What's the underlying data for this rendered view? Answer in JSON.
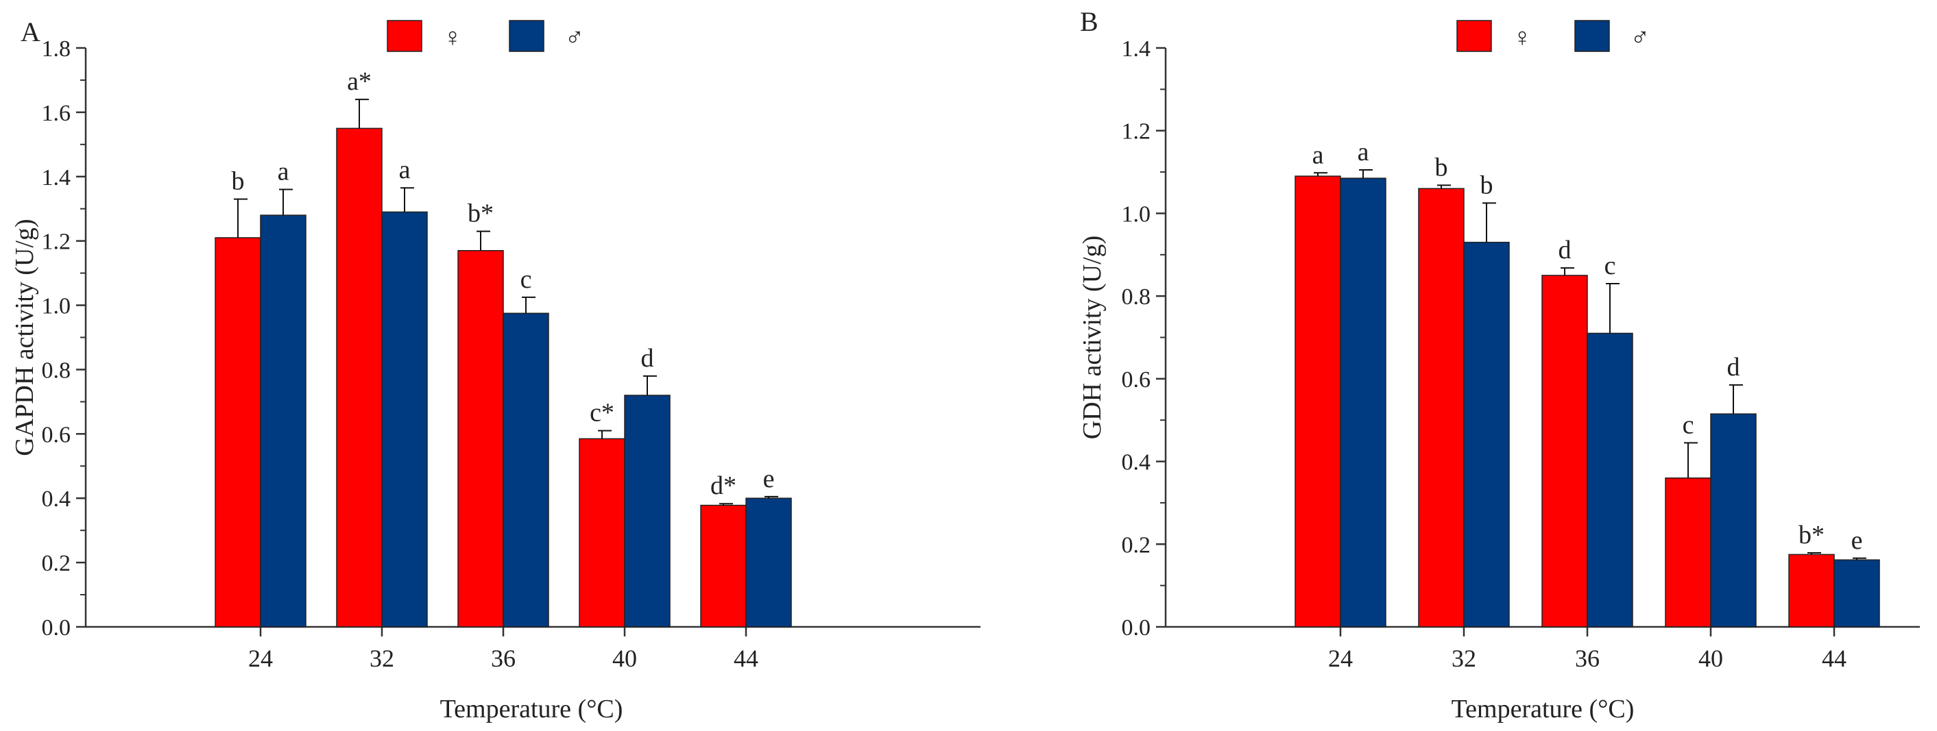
{
  "colors": {
    "female": "#ff0000",
    "male": "#003a80",
    "axis": "#333333"
  },
  "chart_data": [
    {
      "panel_label": "A",
      "type": "bar",
      "title": "",
      "xlabel": "Temperature (°C)",
      "ylabel": "GAPDH activity (U/g)",
      "ylim": [
        0,
        1.8
      ],
      "yticks": [
        0.0,
        0.2,
        0.4,
        0.6,
        0.8,
        1.0,
        1.2,
        1.4,
        1.6,
        1.8
      ],
      "ytick_labels": [
        "0.0",
        "0.2",
        "0.4",
        "0.6",
        "0.8",
        "1.0",
        "1.2",
        "1.4",
        "1.6",
        "1.8"
      ],
      "categories": [
        "24",
        "32",
        "36",
        "40",
        "44"
      ],
      "legend": [
        "♀",
        "♂"
      ],
      "series": [
        {
          "name": "♀",
          "values": [
            1.21,
            1.55,
            1.17,
            0.585,
            0.378
          ],
          "errors": [
            0.12,
            0.09,
            0.06,
            0.025,
            0.005
          ],
          "labels": [
            "b",
            "a*",
            "b*",
            "c*",
            "d*"
          ]
        },
        {
          "name": "♂",
          "values": [
            1.28,
            1.29,
            0.975,
            0.72,
            0.4
          ],
          "errors": [
            0.08,
            0.075,
            0.05,
            0.06,
            0.005
          ],
          "labels": [
            "a",
            "a",
            "c",
            "d",
            "e"
          ]
        }
      ]
    },
    {
      "panel_label": "B",
      "type": "bar",
      "title": "",
      "xlabel": "Temperature (°C)",
      "ylabel": "GDH activity (U/g)",
      "ylim": [
        0,
        1.4
      ],
      "yticks": [
        0.0,
        0.2,
        0.4,
        0.6,
        0.8,
        1.0,
        1.2,
        1.4
      ],
      "ytick_labels": [
        "0.0",
        "0.2",
        "0.4",
        "0.6",
        "0.8",
        "1.0",
        "1.2",
        "1.4"
      ],
      "categories": [
        "24",
        "32",
        "36",
        "40",
        "44"
      ],
      "legend": [
        "♀",
        "♂"
      ],
      "series": [
        {
          "name": "♀",
          "values": [
            1.09,
            1.06,
            0.85,
            0.36,
            0.175
          ],
          "errors": [
            0.008,
            0.008,
            0.018,
            0.085,
            0.004
          ],
          "labels": [
            "a",
            "b",
            "d",
            "c",
            "b*"
          ]
        },
        {
          "name": "♂",
          "values": [
            1.085,
            0.93,
            0.71,
            0.515,
            0.162
          ],
          "errors": [
            0.02,
            0.095,
            0.12,
            0.07,
            0.004
          ],
          "labels": [
            "a",
            "b",
            "c",
            "d",
            "e"
          ]
        }
      ]
    }
  ]
}
